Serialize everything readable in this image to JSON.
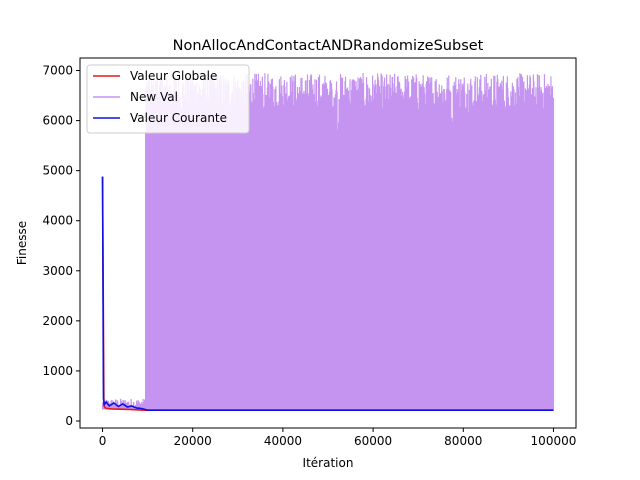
{
  "chart_data": {
    "type": "line",
    "title": "NonAllocAndContactANDRandomizeSubset",
    "xlabel": "Itération",
    "ylabel": "Finesse",
    "xlim": [
      -5000,
      105000
    ],
    "ylim": [
      -140,
      7250
    ],
    "x_ticks": [
      0,
      20000,
      40000,
      60000,
      80000,
      100000
    ],
    "y_ticks": [
      0,
      1000,
      2000,
      3000,
      4000,
      5000,
      6000,
      7000
    ],
    "grid": false,
    "legend_position": "top-left",
    "series": [
      {
        "name": "Valeur Globale",
        "color": "#e41a1c",
        "x": [
          0,
          300,
          600,
          1000,
          2000,
          4000,
          6000,
          8000,
          9500,
          20000,
          40000,
          60000,
          80000,
          100000
        ],
        "y": [
          4880,
          310,
          260,
          250,
          240,
          235,
          230,
          220,
          215,
          215,
          215,
          215,
          215,
          215
        ]
      },
      {
        "name": "New Val",
        "color": "#c594f0",
        "style": "dense-oscillation",
        "x_start": 0,
        "x_end": 100000,
        "low_value": 215,
        "early_segment": {
          "x_end": 9500,
          "low": 230,
          "high": 450
        },
        "late_segment": {
          "x_start": 9500,
          "low": 215,
          "high_min": 5200,
          "high_max": 6950
        }
      },
      {
        "name": "Valeur Courante",
        "color": "#1010e0",
        "x": [
          0,
          200,
          400,
          800,
          1500,
          2500,
          3500,
          4500,
          5500,
          6500,
          7500,
          8500,
          9500,
          10000,
          20000,
          40000,
          60000,
          80000,
          100000
        ],
        "y": [
          4880,
          450,
          330,
          380,
          300,
          360,
          290,
          340,
          280,
          300,
          260,
          250,
          230,
          215,
          215,
          215,
          215,
          215,
          215
        ]
      }
    ]
  }
}
